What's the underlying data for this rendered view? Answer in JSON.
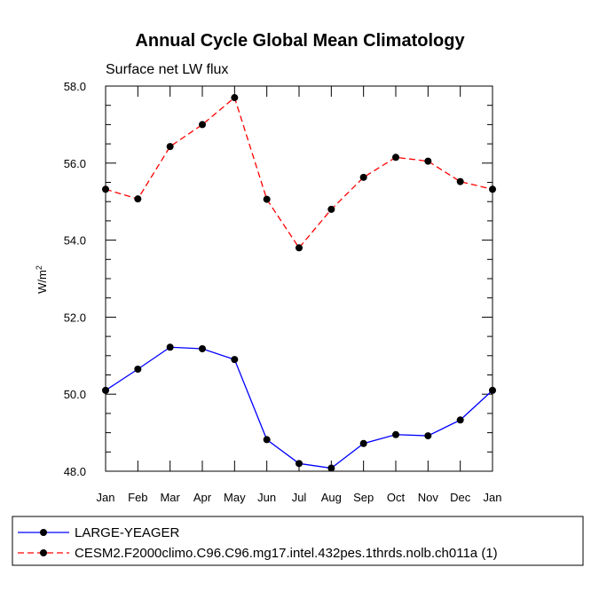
{
  "chart_data": {
    "type": "line",
    "title": "Annual Cycle Global Mean Climatology",
    "subtitle": "Surface net LW flux",
    "ylabel": "W/m",
    "ylabel_superscript": "2",
    "xlabel": "",
    "categories": [
      "Jan",
      "Feb",
      "Mar",
      "Apr",
      "May",
      "Jun",
      "Jul",
      "Aug",
      "Sep",
      "Oct",
      "Nov",
      "Dec",
      "Jan"
    ],
    "ylim": [
      48.0,
      58.0
    ],
    "y_ticks": [
      "48.0",
      "50.0",
      "52.0",
      "54.0",
      "56.0",
      "58.0"
    ],
    "grid": false,
    "legend_position": "bottom",
    "series": [
      {
        "name": "LARGE-YEAGER",
        "color": "#0000ff",
        "dash": "solid",
        "marker": "filled-circle",
        "values": [
          50.1,
          50.65,
          51.22,
          51.18,
          50.9,
          48.82,
          48.2,
          48.08,
          48.72,
          48.95,
          48.92,
          49.33,
          50.1
        ]
      },
      {
        "name": "CESM2.F2000climo.C96.C96.mg17.intel.432pes.1thrds.nolb.ch011a (1)",
        "color": "#ff0000",
        "dash": "dashed",
        "marker": "filled-circle",
        "values": [
          55.32,
          55.07,
          56.43,
          57.0,
          57.7,
          55.06,
          53.8,
          54.8,
          55.63,
          56.15,
          56.05,
          55.52,
          55.32
        ]
      }
    ]
  }
}
